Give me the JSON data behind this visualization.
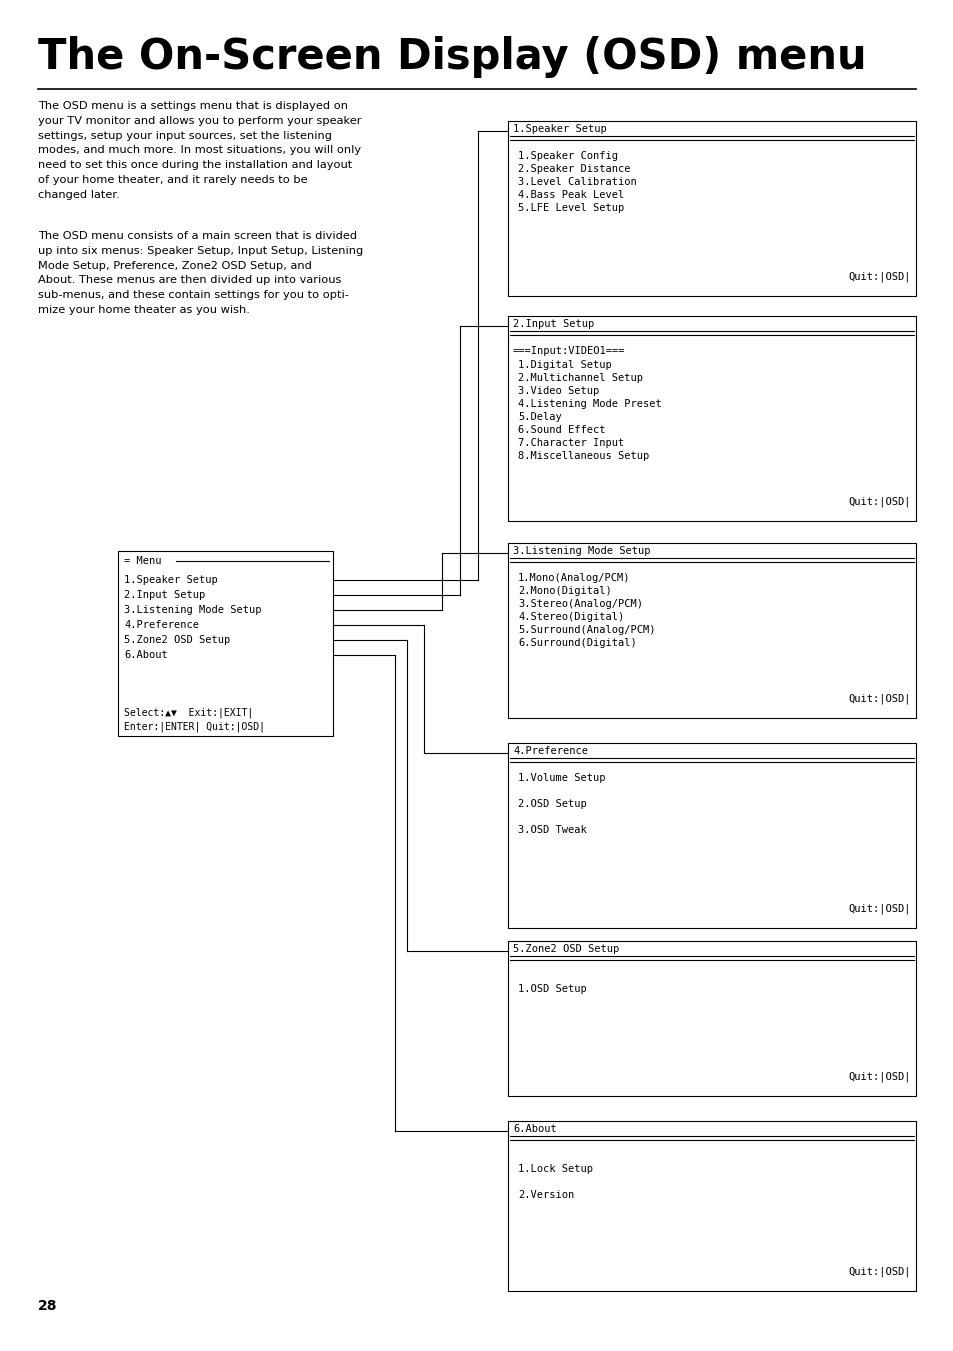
{
  "title": "The On-Screen Display (OSD) menu",
  "paragraph1": "The OSD menu is a settings menu that is displayed on\nyour TV monitor and allows you to perform your speaker\nsettings, setup your input sources, set the listening\nmodes, and much more. In most situations, you will only\nneed to set this once during the installation and layout\nof your home theater, and it rarely needs to be\nchanged later.",
  "paragraph2": "The OSD menu consists of a main screen that is divided\nup into six menus: Speaker Setup, Input Setup, Listening\nMode Setup, Preference, Zone2 OSD Setup, and\nAbout. These menus are then divided up into various\nsub-menus, and these contain settings for you to opti-\nmize your home theater as you wish.",
  "page_number": "28",
  "main_menu": {
    "title": "= Menu",
    "items": [
      "1.Speaker Setup",
      "2.Input Setup",
      "3.Listening Mode Setup",
      "4.Preference",
      "5.Zone2 OSD Setup",
      "6.About"
    ],
    "footer1": "Select:▲▼  Exit:|EXIT|",
    "footer2": "Enter:|ENTER| Quit:|OSD|"
  },
  "submenus": [
    {
      "id": 1,
      "title": "1.Speaker Setup",
      "has_subtitle": false,
      "subtitle": "",
      "items": [
        "1.Speaker Config",
        "2.Speaker Distance",
        "3.Level Calibration",
        "4.Bass Peak Level",
        "5.LFE Level Setup"
      ],
      "footer": "Quit:|OSD|"
    },
    {
      "id": 2,
      "title": "2.Input Setup",
      "has_subtitle": true,
      "subtitle": "===Input:VIDEO1===",
      "items": [
        "1.Digital Setup",
        "2.Multichannel Setup",
        "3.Video Setup",
        "4.Listening Mode Preset",
        "5.Delay",
        "6.Sound Effect",
        "7.Character Input",
        "8.Miscellaneous Setup"
      ],
      "footer": "Quit:|OSD|"
    },
    {
      "id": 3,
      "title": "3.Listening Mode Setup",
      "has_subtitle": false,
      "subtitle": "",
      "items": [
        "1.Mono(Analog/PCM)",
        "2.Mono(Digital)",
        "3.Stereo(Analog/PCM)",
        "4.Stereo(Digital)",
        "5.Surround(Analog/PCM)",
        "6.Surround(Digital)"
      ],
      "footer": "Quit:|OSD|"
    },
    {
      "id": 4,
      "title": "4.Preference",
      "has_subtitle": false,
      "subtitle": "",
      "items": [
        "1.Volume Setup",
        "",
        "2.OSD Setup",
        "",
        "3.OSD Tweak",
        ""
      ],
      "footer": "Quit:|OSD|"
    },
    {
      "id": 5,
      "title": "5.Zone2 OSD Setup",
      "has_subtitle": false,
      "subtitle": "",
      "items": [
        "",
        "1.OSD Setup",
        "",
        ""
      ],
      "footer": "Quit:|OSD|"
    },
    {
      "id": 6,
      "title": "6.About",
      "has_subtitle": false,
      "subtitle": "",
      "items": [
        "",
        "1.Lock Setup",
        "",
        "2.Version",
        ""
      ],
      "footer": "Quit:|OSD|"
    }
  ],
  "bg_color": "#ffffff",
  "text_color": "#000000"
}
